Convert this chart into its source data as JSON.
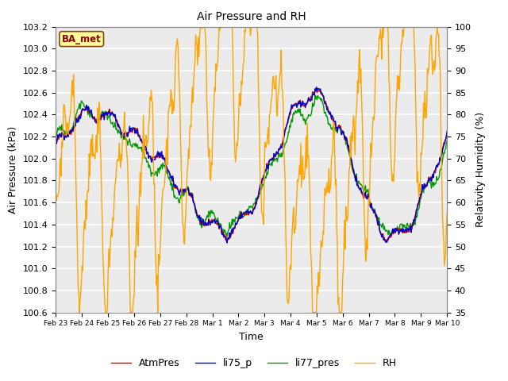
{
  "title": "Air Pressure and RH",
  "xlabel": "Time",
  "ylabel_left": "Air Pressure (kPa)",
  "ylabel_right": "Relativity Humidity (%)",
  "ylim_left": [
    100.6,
    103.2
  ],
  "ylim_right": [
    35,
    100
  ],
  "yticks_left": [
    100.6,
    100.8,
    101.0,
    101.2,
    101.4,
    101.6,
    101.8,
    102.0,
    102.2,
    102.4,
    102.6,
    102.8,
    103.0,
    103.2
  ],
  "yticks_right": [
    35,
    40,
    45,
    50,
    55,
    60,
    65,
    70,
    75,
    80,
    85,
    90,
    95,
    100
  ],
  "xtick_labels": [
    "Feb 23",
    "Feb 24",
    "Feb 25",
    "Feb 26",
    "Feb 27",
    "Feb 28",
    "Mar 1",
    "Mar 2",
    "Mar 3",
    "Mar 4",
    "Mar 5",
    "Mar 6",
    "Mar 7",
    "Mar 8",
    "Mar 9",
    "Mar 10"
  ],
  "annotation_text": "BA_met",
  "annotation_color": "#8B0000",
  "annotation_bg": "#FFFF99",
  "annotation_edge": "#8B4513",
  "line_colors": {
    "AtmPres": "#CC0000",
    "li75_p": "#0000CC",
    "li77_pres": "#009900",
    "RH": "#FFA500"
  },
  "line_widths": {
    "AtmPres": 1.0,
    "li75_p": 1.0,
    "li77_pres": 1.0,
    "RH": 1.0
  },
  "bg_color": "#FFFFFF",
  "plot_bg_color": "#EBEBEB",
  "grid_color": "#FFFFFF",
  "n_points": 600,
  "seed": 42
}
